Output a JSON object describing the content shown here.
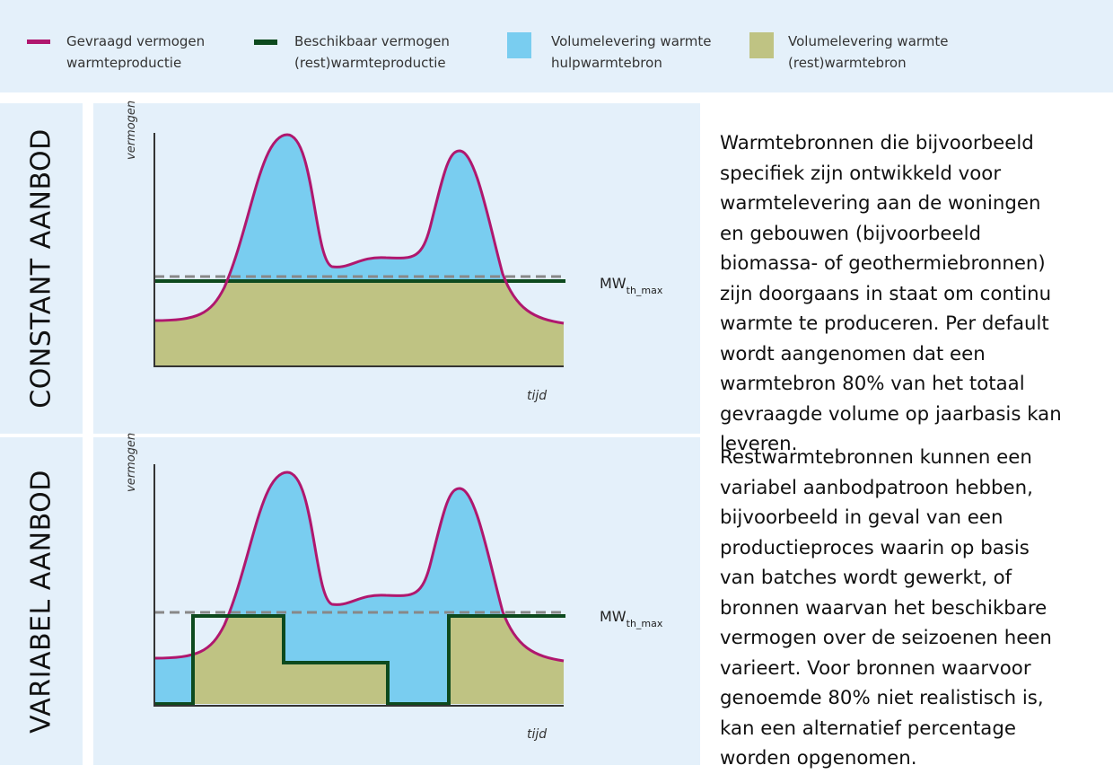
{
  "legend": [
    {
      "lines": [
        "Gevraagd vermogen",
        "warmteproductie"
      ]
    },
    {
      "lines": [
        "Beschikbaar vermogen",
        "(rest)warmteproductie"
      ]
    },
    {
      "lines": [
        "Volumelevering warmte",
        "hulpwarmtebron"
      ]
    },
    {
      "lines": [
        "Volumelevering warmte",
        "(rest)warmtebron"
      ]
    }
  ],
  "rows": [
    {
      "label": "CONSTANT AANBOD",
      "y_axis": "vermogen",
      "x_axis": "tijd",
      "level": "MW",
      "level_sub": "th_max",
      "text": [
        "Warmtebronnen die bijvoorbeeld",
        "specifiek zijn ontwikkeld voor",
        "warmtelevering aan de woningen",
        "en gebouwen (bijvoorbeeld",
        "biomassa- of geothermiebronnen)",
        "zijn doorgaans in staat om continu",
        "warmte te produceren. Per default",
        "wordt aangenomen dat een",
        "warmtebron 80% van het totaal",
        "gevraagde volume op jaarbasis kan",
        "leveren."
      ]
    },
    {
      "label": "VARIABEL AANBOD",
      "y_axis": "vermogen",
      "x_axis": "tijd",
      "level": "MW",
      "level_sub": "th_max",
      "text": [
        "Restwarmtebronnen kunnen een",
        "variabel aanbodpatroon hebben,",
        "bijvoorbeeld in geval van een",
        "productieproces waarin op basis",
        "van batches wordt gewerkt, of",
        "bronnen waarvan het beschikbare",
        "vermogen over de seizoenen heen",
        "varieert. Voor bronnen waarvoor",
        "genoemde 80% niet realistisch is,",
        "kan een alternatief percentage",
        "worden opgenomen."
      ]
    }
  ]
}
